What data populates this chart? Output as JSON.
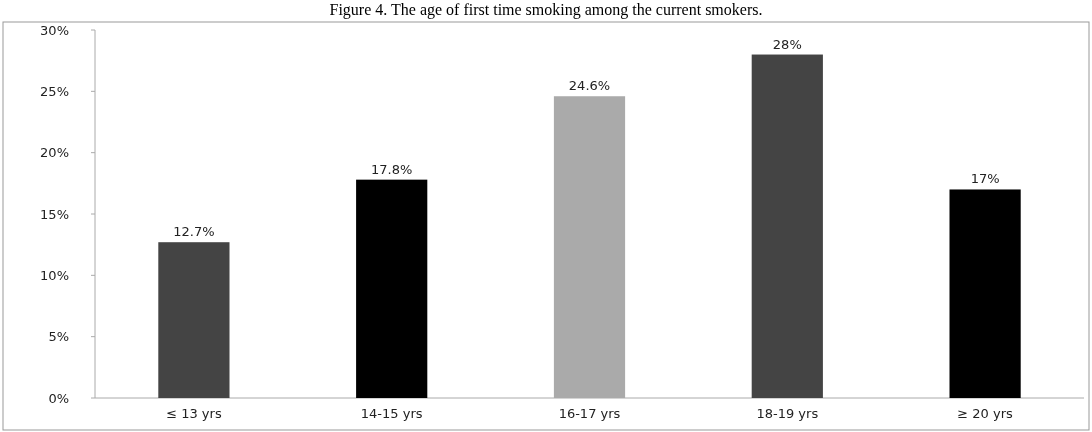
{
  "chart_data": {
    "type": "bar",
    "title": "Figure 4. The age of first time smoking among the current smokers.",
    "categories": [
      "≤ 13 yrs",
      "14-15 yrs",
      "16-17 yrs",
      "18-19 yrs",
      "≥ 20 yrs"
    ],
    "values": [
      12.7,
      17.8,
      24.6,
      28,
      17
    ],
    "colors": [
      "#444444",
      "#000000",
      "#aaaaaa",
      "#444444",
      "#000000"
    ],
    "value_labels": [
      "12.7%",
      "17.8%",
      "24.6%",
      "28%",
      "17%"
    ],
    "ylim": [
      0,
      30
    ],
    "yticks": [
      {
        "value": 0,
        "label": "0%"
      },
      {
        "value": 5,
        "label": "5%"
      },
      {
        "value": 10,
        "label": "10%"
      },
      {
        "value": 15,
        "label": "15%"
      },
      {
        "value": 20,
        "label": "20%"
      },
      {
        "value": 25,
        "label": "25%"
      },
      {
        "value": 30,
        "label": "30%"
      }
    ],
    "grid": false
  }
}
